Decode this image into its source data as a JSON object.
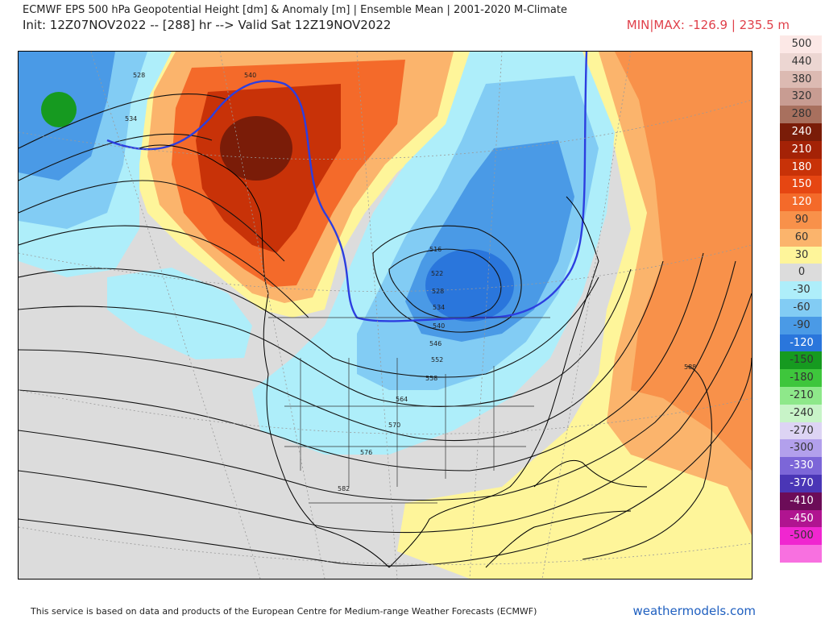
{
  "header": {
    "title": "ECMWF EPS 500 hPa Geopotential Height [dm] & Anomaly [m] | Ensemble Mean | 2001-2020 M-Climate",
    "subtitle": "Init: 12Z07NOV2022 -- [288] hr --> Valid Sat 12Z19NOV2022",
    "minmax": "MIN|MAX: -126.9 | 235.5 m"
  },
  "colorbar": {
    "entries": [
      {
        "label": "500",
        "color": "#fce8e6"
      },
      {
        "label": "440",
        "color": "#ecd6d2"
      },
      {
        "label": "380",
        "color": "#dcbab2"
      },
      {
        "label": "320",
        "color": "#c89c92"
      },
      {
        "label": "280",
        "color": "#a8705e"
      },
      {
        "label": "240",
        "color": "#7a1c08"
      },
      {
        "label": "210",
        "color": "#a42206"
      },
      {
        "label": "180",
        "color": "#c83208"
      },
      {
        "label": "150",
        "color": "#e64612"
      },
      {
        "label": "120",
        "color": "#f46a2a"
      },
      {
        "label": "90",
        "color": "#f8914a"
      },
      {
        "label": "60",
        "color": "#fbb46c"
      },
      {
        "label": "30",
        "color": "#fef59a"
      },
      {
        "label": "0",
        "color": "#dcdcdc"
      },
      {
        "label": "-30",
        "color": "#aeeefa"
      },
      {
        "label": "-60",
        "color": "#82ccf4"
      },
      {
        "label": "-90",
        "color": "#4a9ae6"
      },
      {
        "label": "-120",
        "color": "#2a76dc"
      },
      {
        "label": "-150",
        "color": "#169a20"
      },
      {
        "label": "-180",
        "color": "#3ec63c"
      },
      {
        "label": "-210",
        "color": "#8ee88a"
      },
      {
        "label": "-240",
        "color": "#c8f4c8"
      },
      {
        "label": "-270",
        "color": "#ddd4f4"
      },
      {
        "label": "-300",
        "color": "#b2a0ec"
      },
      {
        "label": "-330",
        "color": "#7c66d8"
      },
      {
        "label": "-370",
        "color": "#4a36b6"
      },
      {
        "label": "-410",
        "color": "#6c0c58"
      },
      {
        "label": "-450",
        "color": "#b01490"
      },
      {
        "label": "-500",
        "color": "#f026d0"
      },
      {
        "label": "",
        "color": "#f870e0"
      }
    ]
  },
  "map": {
    "contour_labels": [
      "528",
      "534",
      "540",
      "516",
      "522",
      "528",
      "534",
      "540",
      "546",
      "552",
      "558",
      "564",
      "570",
      "576",
      "582",
      "588"
    ]
  },
  "footer": {
    "attribution": "This service is based on data and products of the European Centre for Medium-range Weather Forecasts (ECMWF)",
    "brand": "weathermodels.com"
  }
}
